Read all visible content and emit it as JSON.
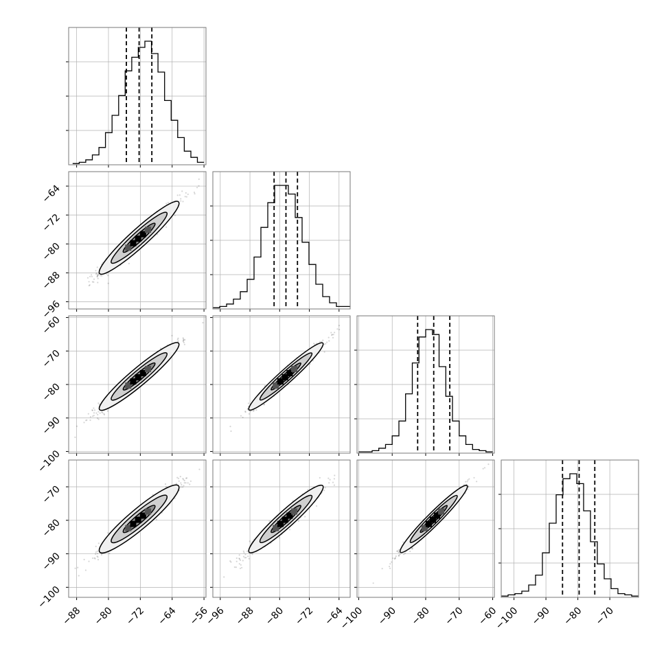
{
  "chart_data": [
    {
      "type": "histogram",
      "position": "row 1, col 1",
      "dashed_lines": [
        -75.5,
        -72.3,
        -69.1
      ],
      "bins_start": -89,
      "bins_end": -56,
      "bins_step": 1.65,
      "counts": [
        0.01,
        0.02,
        0.04,
        0.08,
        0.14,
        0.26,
        0.4,
        0.56,
        0.76,
        0.87,
        0.95,
        1.0,
        0.9,
        0.75,
        0.52,
        0.36,
        0.22,
        0.11,
        0.06,
        0.02
      ],
      "grid": true,
      "ytick_labels": false
    },
    {
      "type": "histogram",
      "position": "row 2, col 2",
      "dashed_lines": [
        -81.5,
        -78.3,
        -75.2
      ],
      "bins_start": -98,
      "bins_end": -61,
      "bins_step": 1.85,
      "counts": [
        0.01,
        0.02,
        0.04,
        0.08,
        0.14,
        0.24,
        0.42,
        0.66,
        0.86,
        1.0,
        1.0,
        0.93,
        0.74,
        0.54,
        0.36,
        0.2,
        0.1,
        0.05,
        0.02,
        0.02
      ],
      "grid": true,
      "ytick_labels": false
    },
    {
      "type": "histogram",
      "position": "row 3, col 3",
      "dashed_lines": [
        -82.4,
        -77.6,
        -72.8
      ],
      "bins_start": -100,
      "bins_end": -60,
      "bins_step": 2,
      "counts": [
        0.01,
        0.01,
        0.02,
        0.04,
        0.07,
        0.14,
        0.26,
        0.48,
        0.73,
        0.94,
        1.0,
        0.96,
        0.7,
        0.46,
        0.26,
        0.14,
        0.07,
        0.03,
        0.02,
        0.01
      ],
      "grid": true,
      "ytick_labels": false
    },
    {
      "type": "histogram",
      "position": "row 4, col 4",
      "dashed_lines": [
        -84.8,
        -79.6,
        -74.7
      ],
      "bins_start": -104,
      "bins_end": -61,
      "bins_step": 2.15,
      "counts": [
        0.01,
        0.02,
        0.03,
        0.05,
        0.1,
        0.18,
        0.36,
        0.6,
        0.83,
        0.96,
        1.0,
        0.92,
        0.7,
        0.45,
        0.27,
        0.15,
        0.07,
        0.03,
        0.02,
        0.01
      ],
      "grid": true,
      "ytick_labels": false
    },
    {
      "type": "scatter",
      "position": "row 2, col 1",
      "xlim": [
        -90,
        -55.5
      ],
      "ylim": [
        -98,
        -60
      ],
      "center": [
        -72.3,
        -78.3
      ],
      "sd": [
        5.0,
        5.0
      ],
      "corr": 0.97,
      "n_points": 700,
      "contours": true,
      "grid": true
    },
    {
      "type": "scatter",
      "position": "row 3, col 1",
      "xlim": [
        -90,
        -55.5
      ],
      "ylim": [
        -100.5,
        -59.5
      ],
      "center": [
        -72.3,
        -77.6
      ],
      "sd": [
        5.0,
        5.0
      ],
      "corr": 0.97,
      "n_points": 700,
      "contours": true,
      "grid": true
    },
    {
      "type": "scatter",
      "position": "row 3, col 2",
      "xlim": [
        -98,
        -61
      ],
      "ylim": [
        -100.5,
        -59.5
      ],
      "center": [
        -78.3,
        -77.6
      ],
      "sd": [
        5.0,
        5.0
      ],
      "corr": 0.98,
      "n_points": 700,
      "contours": true,
      "grid": true
    },
    {
      "type": "scatter",
      "position": "row 4, col 1",
      "xlim": [
        -90,
        -55.5
      ],
      "ylim": [
        -103,
        -62
      ],
      "center": [
        -72.3,
        -79.6
      ],
      "sd": [
        5.0,
        5.0
      ],
      "corr": 0.96,
      "n_points": 700,
      "contours": true,
      "grid": true
    },
    {
      "type": "scatter",
      "position": "row 4, col 2",
      "xlim": [
        -98,
        -61
      ],
      "ylim": [
        -103,
        -62
      ],
      "center": [
        -78.3,
        -79.6
      ],
      "sd": [
        5.0,
        5.0
      ],
      "corr": 0.97,
      "n_points": 700,
      "contours": true,
      "grid": true
    },
    {
      "type": "scatter",
      "position": "row 4, col 3",
      "xlim": [
        -100.5,
        -59.5
      ],
      "ylim": [
        -103,
        -62
      ],
      "center": [
        -77.6,
        -79.6
      ],
      "sd": [
        5.0,
        5.0
      ],
      "corr": 0.98,
      "n_points": 700,
      "contours": true,
      "grid": true
    }
  ],
  "axes": {
    "columns": [
      {
        "xlim": [
          -90,
          -55.5
        ],
        "ticks": [
          -88,
          -80,
          -72,
          -64,
          -56
        ],
        "tick_labels": [
          "−88",
          "−80",
          "−72",
          "−64",
          "−56"
        ]
      },
      {
        "xlim": [
          -98,
          -61
        ],
        "ticks": [
          -96,
          -88,
          -80,
          -72,
          -64
        ],
        "tick_labels": [
          "−96",
          "−88",
          "−80",
          "−72",
          "−64"
        ]
      },
      {
        "xlim": [
          -100.5,
          -59.5
        ],
        "ticks": [
          -100,
          -90,
          -80,
          -70,
          -60
        ],
        "tick_labels": [
          "−100",
          "−90",
          "−80",
          "−70",
          "−60"
        ]
      },
      {
        "xlim": [
          -104,
          -61
        ],
        "ticks": [
          -100,
          -90,
          -80,
          -70
        ],
        "tick_labels": [
          "−100",
          "−90",
          "−80",
          "−70"
        ]
      }
    ],
    "rows": [
      null,
      {
        "ylim": [
          -98,
          -60
        ],
        "ticks": [
          -96,
          -88,
          -80,
          -72,
          -64
        ],
        "tick_labels": [
          "−96",
          "−88",
          "−80",
          "−72",
          "−64"
        ]
      },
      {
        "ylim": [
          -100.5,
          -59.5
        ],
        "ticks": [
          -100,
          -90,
          -80,
          -70,
          -60
        ],
        "tick_labels": [
          "−100",
          "−90",
          "−80",
          "−70",
          "−60"
        ]
      },
      {
        "ylim": [
          -103,
          -62
        ],
        "ticks": [
          -100,
          -90,
          -80,
          -70
        ],
        "tick_labels": [
          "−100",
          "−90",
          "−80",
          "−70"
        ]
      }
    ]
  },
  "colors": {
    "line": "#000000",
    "grid": "#b0b0b0",
    "points": "#000000"
  }
}
